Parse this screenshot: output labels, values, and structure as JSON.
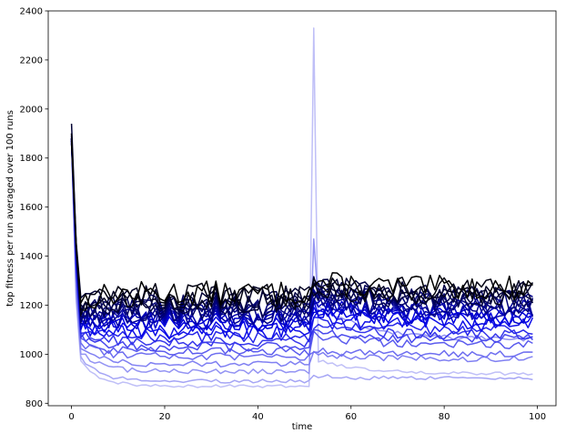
{
  "chart_data": {
    "type": "line",
    "title": "",
    "xlabel": "time",
    "ylabel": "top fitness per run averaged over 100 runs",
    "xlim": [
      -5,
      104
    ],
    "ylim": [
      790,
      2400
    ],
    "xticks": [
      0,
      20,
      40,
      60,
      80,
      100
    ],
    "yticks": [
      800,
      1000,
      1200,
      1400,
      1600,
      1800,
      2000,
      2200,
      2400
    ],
    "xtick_labels": [
      "0",
      "20",
      "40",
      "60",
      "80",
      "100"
    ],
    "ytick_labels": [
      "800",
      "1000",
      "1200",
      "1400",
      "1600",
      "1800",
      "2000",
      "2200",
      "2400"
    ],
    "grid": false,
    "legend": "none",
    "x_range": [
      0,
      99
    ],
    "event_time": 52,
    "series_color_light": "#dcdcfa",
    "series_color_mid": "#0000e6",
    "series_color_dark": "#000000",
    "series": [
      {
        "start": 1870,
        "plateau": 1250,
        "noise": 50,
        "post_plateau": 1270,
        "jump": 0,
        "color_level": 1.0
      },
      {
        "start": 1900,
        "plateau": 1240,
        "noise": 50,
        "post_plateau": 1260,
        "jump": 0,
        "color_level": 0.97
      },
      {
        "start": 1880,
        "plateau": 1230,
        "noise": 50,
        "post_plateau": 1250,
        "jump": 0,
        "color_level": 0.94
      },
      {
        "start": 1940,
        "plateau": 1220,
        "noise": 50,
        "post_plateau": 1250,
        "jump": 0,
        "color_level": 0.91
      },
      {
        "start": 1880,
        "plateau": 1210,
        "noise": 45,
        "post_plateau": 1240,
        "jump": 0,
        "color_level": 0.88
      },
      {
        "start": 1860,
        "plateau": 1200,
        "noise": 45,
        "post_plateau": 1230,
        "jump": 0,
        "color_level": 0.85
      },
      {
        "start": 1890,
        "plateau": 1190,
        "noise": 45,
        "post_plateau": 1220,
        "jump": 0,
        "color_level": 0.82
      },
      {
        "start": 1900,
        "plateau": 1180,
        "noise": 45,
        "post_plateau": 1210,
        "jump": 0,
        "color_level": 0.79
      },
      {
        "start": 1880,
        "plateau": 1170,
        "noise": 45,
        "post_plateau": 1200,
        "jump": 0,
        "color_level": 0.76
      },
      {
        "start": 1860,
        "plateau": 1160,
        "noise": 40,
        "post_plateau": 1190,
        "jump": 0,
        "color_level": 0.73
      },
      {
        "start": 1870,
        "plateau": 1150,
        "noise": 40,
        "post_plateau": 1180,
        "jump": 0,
        "color_level": 0.7
      },
      {
        "start": 1880,
        "plateau": 1140,
        "noise": 40,
        "post_plateau": 1170,
        "jump": 0,
        "color_level": 0.67
      },
      {
        "start": 1890,
        "plateau": 1130,
        "noise": 40,
        "post_plateau": 1160,
        "jump": 0,
        "color_level": 0.64
      },
      {
        "start": 1880,
        "plateau": 1120,
        "noise": 35,
        "post_plateau": 1150,
        "jump": 0,
        "color_level": 0.61
      },
      {
        "start": 1870,
        "plateau": 1100,
        "noise": 35,
        "post_plateau": 1140,
        "jump": 0,
        "color_level": 0.58
      },
      {
        "start": 1880,
        "plateau": 1090,
        "noise": 30,
        "post_plateau": 1120,
        "jump": 0,
        "color_level": 0.55
      },
      {
        "start": 1860,
        "plateau": 1070,
        "noise": 25,
        "post_plateau": 1100,
        "jump": 0,
        "color_level": 0.5
      },
      {
        "start": 1870,
        "plateau": 1050,
        "noise": 20,
        "post_plateau": 1080,
        "jump": 0,
        "color_level": 0.45
      },
      {
        "start": 1880,
        "plateau": 1030,
        "noise": 20,
        "post_plateau": 1060,
        "jump": 0,
        "color_level": 0.4
      },
      {
        "start": 1870,
        "plateau": 1010,
        "noise": 18,
        "post_plateau": 1040,
        "jump": 0,
        "color_level": 0.35
      },
      {
        "start": 1860,
        "plateau": 990,
        "noise": 15,
        "post_plateau": 1000,
        "jump": 0,
        "color_level": 0.3
      },
      {
        "start": 1880,
        "plateau": 960,
        "noise": 12,
        "post_plateau": 980,
        "jump": 0,
        "color_level": 0.25
      },
      {
        "start": 1870,
        "plateau": 930,
        "noise": 10,
        "post_plateau": 1060,
        "jump": 1470,
        "color_level": 0.2
      },
      {
        "start": 1880,
        "plateau": 890,
        "noise": 8,
        "post_plateau": 900,
        "jump": 0,
        "color_level": 0.15
      },
      {
        "start": 1870,
        "plateau": 870,
        "noise": 6,
        "post_plateau": 920,
        "jump": 2330,
        "color_level": 0.08
      }
    ]
  }
}
